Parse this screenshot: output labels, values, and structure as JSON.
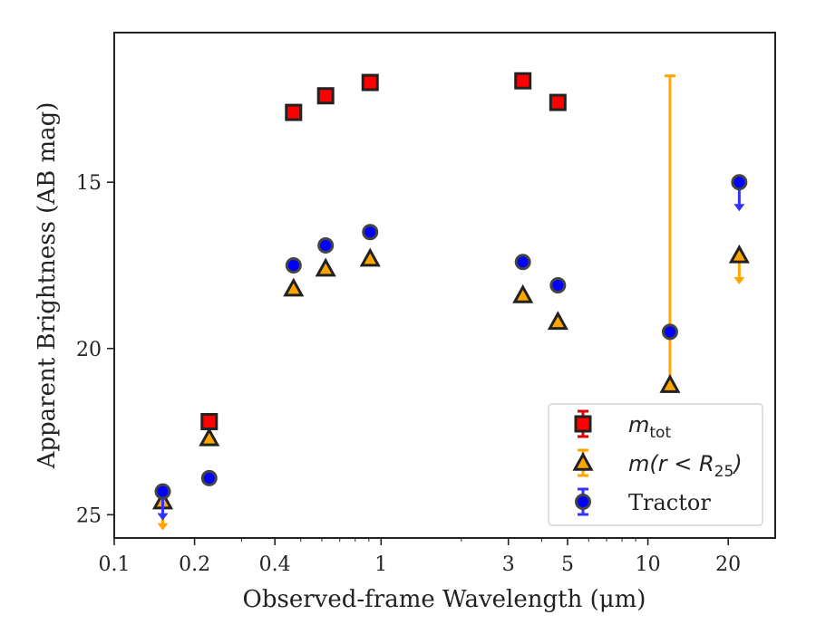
{
  "chart_data": {
    "type": "scatter",
    "title": "",
    "xlabel": "Observed-frame Wavelength (μm)",
    "ylabel": "Apparent Brightness (AB mag)",
    "x_scale": "log",
    "xlim": [
      0.1,
      30
    ],
    "ylim": [
      25.7,
      10.5
    ],
    "y_inverted": true,
    "x_ticks": [
      0.1,
      0.2,
      0.4,
      1,
      3,
      5,
      10,
      20
    ],
    "x_tick_labels": [
      "0.1",
      "0.2",
      "0.4",
      "1",
      "3",
      "5",
      "10",
      "20"
    ],
    "y_ticks": [
      15,
      20,
      25
    ],
    "y_tick_labels": [
      "15",
      "20",
      "25"
    ],
    "grid": false,
    "legend_position": "lower-right",
    "legend": [
      {
        "label": "m_tot",
        "text_main": "m",
        "text_sub": "tot",
        "marker": "square",
        "color": "#ff0000"
      },
      {
        "label": "m(r < R_25)",
        "text_main": "m(r < R",
        "text_sub": "25",
        "text_tail": ")",
        "marker": "triangle",
        "color": "#ffa500"
      },
      {
        "label": "Tractor",
        "text_main": "Tractor",
        "marker": "circle",
        "color": "#0000ff"
      }
    ],
    "series": [
      {
        "name": "m_tot",
        "marker": "square",
        "color": "#ff0000",
        "points": [
          {
            "x": 0.227,
            "y": 22.2
          },
          {
            "x": 0.47,
            "y": 12.9
          },
          {
            "x": 0.62,
            "y": 12.4
          },
          {
            "x": 0.91,
            "y": 12.0
          },
          {
            "x": 3.4,
            "y": 11.95
          },
          {
            "x": 4.6,
            "y": 12.6
          }
        ]
      },
      {
        "name": "m(r < R_25)",
        "marker": "triangle",
        "color": "#ffa500",
        "points": [
          {
            "x": 0.152,
            "y": 24.6,
            "upper_limit": true
          },
          {
            "x": 0.227,
            "y": 22.7
          },
          {
            "x": 0.47,
            "y": 18.2
          },
          {
            "x": 0.62,
            "y": 17.6
          },
          {
            "x": 0.91,
            "y": 17.3
          },
          {
            "x": 3.4,
            "y": 18.4
          },
          {
            "x": 4.6,
            "y": 19.2
          },
          {
            "x": 12.1,
            "y": 21.1,
            "err_low": 9.3,
            "err_high": 0
          },
          {
            "x": 22.0,
            "y": 17.2,
            "upper_limit": true
          }
        ]
      },
      {
        "name": "Tractor",
        "marker": "circle",
        "color": "#0000ff",
        "points": [
          {
            "x": 0.152,
            "y": 24.3,
            "upper_limit": true
          },
          {
            "x": 0.227,
            "y": 23.9
          },
          {
            "x": 0.47,
            "y": 17.5
          },
          {
            "x": 0.62,
            "y": 16.9
          },
          {
            "x": 0.91,
            "y": 16.5
          },
          {
            "x": 3.4,
            "y": 17.4
          },
          {
            "x": 4.6,
            "y": 18.1
          },
          {
            "x": 12.1,
            "y": 19.5
          },
          {
            "x": 22.0,
            "y": 15.0,
            "upper_limit": true
          }
        ]
      }
    ]
  }
}
